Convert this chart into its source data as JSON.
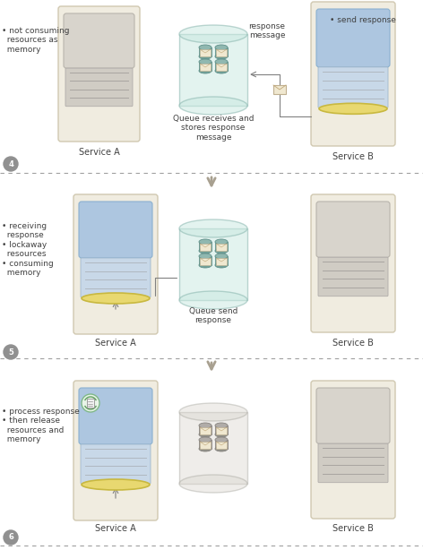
{
  "bg_color": "#ffffff",
  "panel_bg": "#f5f0e8",
  "service_box_color": "#f0ece0",
  "service_box_edge": "#d0c8b0",
  "blue_rect_color": "#adc6e0",
  "blue_rect_edge": "#8ab0d0",
  "gray_rect_color": "#d8d4cc",
  "gray_rect_edge": "#b8b4ac",
  "queue_color": "#b0d0c8",
  "queue_edge": "#80b0a8",
  "queue_fill_inactive": "#d0ccc4",
  "yellow_ring": "#e8d870",
  "arrow_color": "#a8a090",
  "dashed_line_color": "#a0a0a0",
  "text_color": "#404040",
  "step_circle_color": "#909090",
  "envelope_color": "#f0e8d0",
  "panel1_label4": "4",
  "panel2_label5": "5",
  "panel3_label6": "6",
  "serviceA_label": "Service A",
  "serviceB_label": "Service B",
  "queue_label1": "Queue receives and\nstores response\nmessage",
  "queue_label2": "Queue send\nresponse",
  "annotation1": "• not consuming\n  resources as\n  memory",
  "annotation_send": "• send response",
  "annotation5": "• receiving\n  response\n• lockaway\n  resources\n• consuming\n  memory",
  "annotation6": "• process response\n• then release\n  resources and\n  memory",
  "response_msg_label": "response\nmessage"
}
